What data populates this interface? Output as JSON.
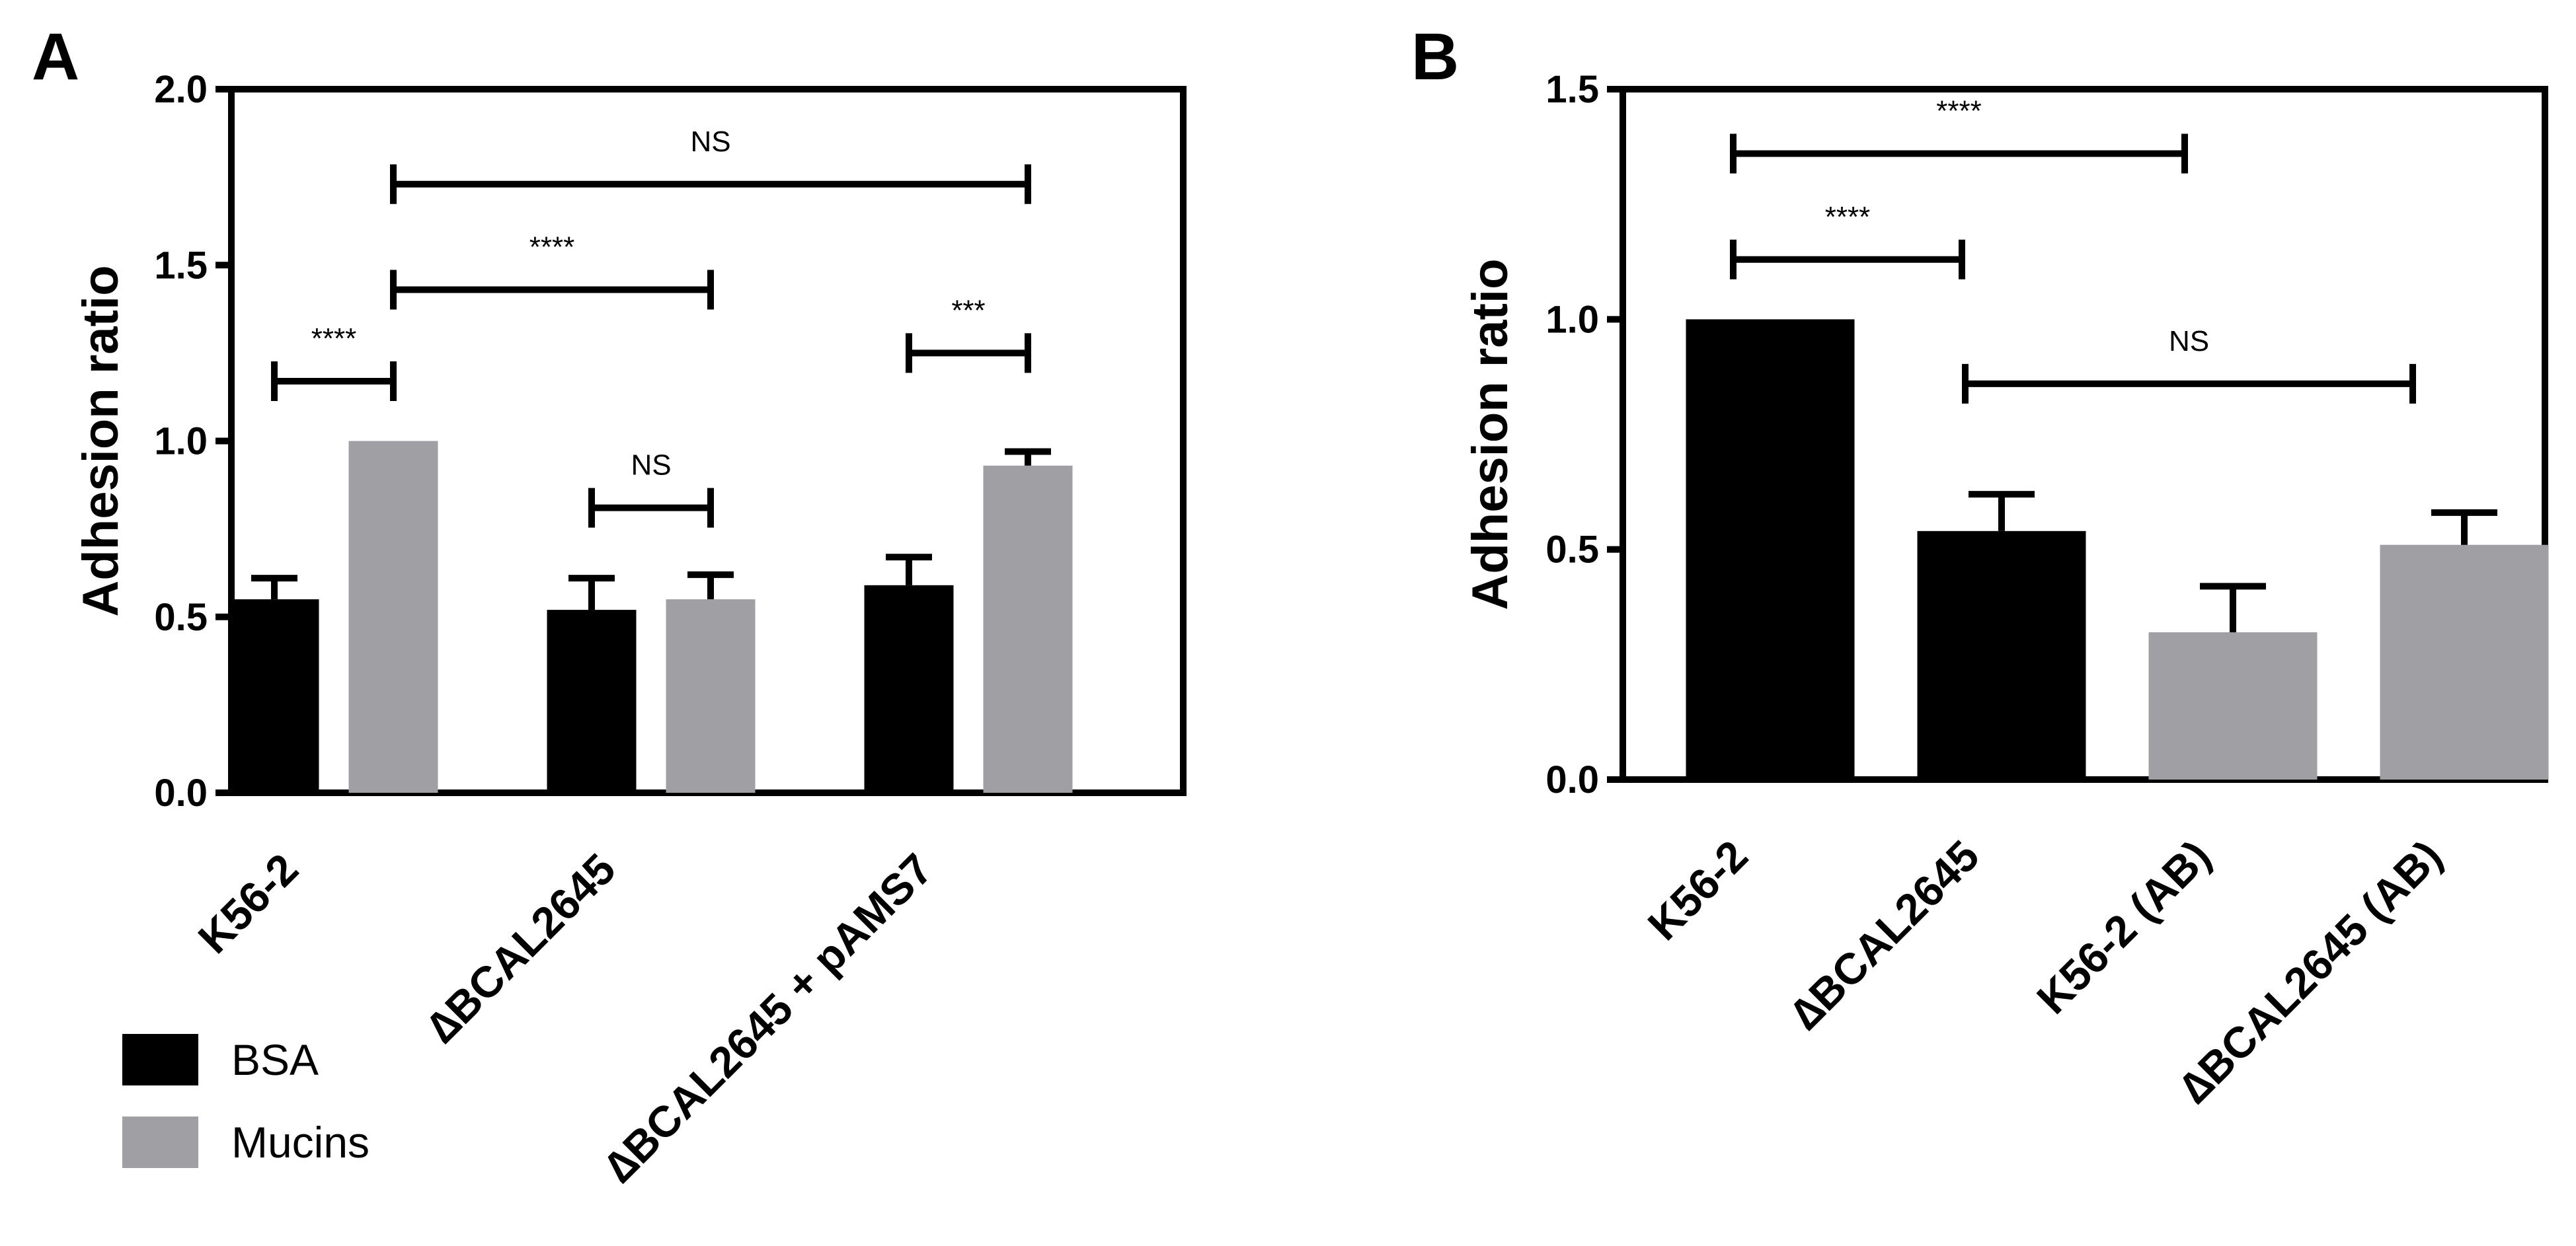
{
  "chart_data": [
    {
      "panel": "A",
      "type": "bar",
      "ylabel": "Adhesion ratio",
      "ylim": [
        0,
        2.0
      ],
      "yticks": [
        "0.0",
        "0.5",
        "1.0",
        "1.5",
        "2.0"
      ],
      "categories": [
        "K56-2",
        "∆BCAL2645",
        "∆BCAL2645 + pAMS7"
      ],
      "series": [
        {
          "name": "BSA",
          "color": "#000000",
          "values": [
            0.55,
            0.52,
            0.59
          ],
          "errors": [
            0.06,
            0.09,
            0.08
          ]
        },
        {
          "name": "Mucins",
          "color": "#a0a0a4",
          "values": [
            1.0,
            0.55,
            0.93
          ],
          "errors": [
            0.0,
            0.07,
            0.04
          ]
        }
      ],
      "legend": [
        "BSA",
        "Mucins"
      ],
      "legend_position": "bottom-left",
      "significance": [
        {
          "label": "****",
          "from": [
            0,
            0
          ],
          "to": [
            0,
            1
          ],
          "y": 1.17
        },
        {
          "label": "****",
          "from": [
            0,
            1
          ],
          "to": [
            1,
            1
          ],
          "y": 1.43
        },
        {
          "label": "NS",
          "from": [
            0,
            1
          ],
          "to": [
            2,
            1
          ],
          "y": 1.73
        },
        {
          "label": "NS",
          "from": [
            1,
            0
          ],
          "to": [
            1,
            1
          ],
          "y": 0.81
        },
        {
          "label": "***",
          "from": [
            2,
            0
          ],
          "to": [
            2,
            1
          ],
          "y": 1.25
        }
      ]
    },
    {
      "panel": "B",
      "type": "bar",
      "ylabel": "Adhesion ratio",
      "ylim": [
        0,
        1.5
      ],
      "yticks": [
        "0.0",
        "0.5",
        "1.0",
        "1.5"
      ],
      "categories": [
        "K56-2",
        "∆BCAL2645",
        "K56-2 (AB)",
        "∆BCAL2645 (AB)"
      ],
      "values": [
        1.0,
        0.54,
        0.32,
        0.51
      ],
      "errors": [
        0.0,
        0.08,
        0.1,
        0.07
      ],
      "colors": [
        "#000000",
        "#000000",
        "#a0a0a4",
        "#a0a0a4"
      ],
      "significance": [
        {
          "label": "****",
          "from": 0,
          "to": 2,
          "y": 1.36
        },
        {
          "label": "****",
          "from": 0,
          "to": 1,
          "y": 1.13
        },
        {
          "label": "NS",
          "from": 1,
          "to": 3,
          "y": 0.86
        }
      ]
    }
  ]
}
